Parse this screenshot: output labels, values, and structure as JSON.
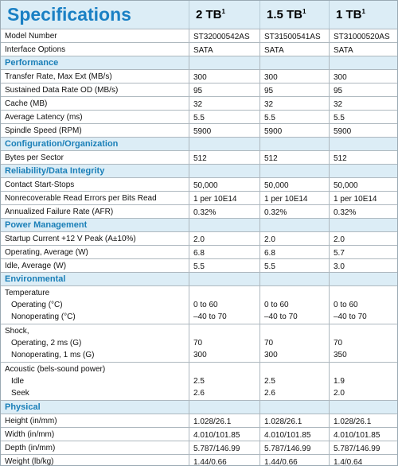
{
  "header": {
    "title": "Specifications",
    "columns": [
      {
        "label": "2 TB",
        "sup": "1"
      },
      {
        "label": "1.5 TB",
        "sup": "1"
      },
      {
        "label": "1 TB",
        "sup": "1"
      }
    ]
  },
  "top_rows": [
    {
      "label": "Model Number",
      "values": [
        "ST32000542AS",
        "ST31500541AS",
        "ST31000520AS"
      ]
    },
    {
      "label": "Interface Options",
      "values": [
        "SATA",
        "SATA",
        "SATA"
      ]
    }
  ],
  "sections": [
    {
      "title": "Performance",
      "rows": [
        {
          "label": "Transfer Rate, Max Ext (MB/s)",
          "values": [
            "300",
            "300",
            "300"
          ]
        },
        {
          "label": "Sustained Data Rate OD (MB/s)",
          "values": [
            "95",
            "95",
            "95"
          ]
        },
        {
          "label": "Cache (MB)",
          "values": [
            "32",
            "32",
            "32"
          ]
        },
        {
          "label": "Average Latency (ms)",
          "values": [
            "5.5",
            "5.5",
            "5.5"
          ]
        },
        {
          "label": "Spindle Speed (RPM)",
          "values": [
            "5900",
            "5900",
            "5900"
          ]
        }
      ]
    },
    {
      "title": "Configuration/Organization",
      "rows": [
        {
          "label": "Bytes per Sector",
          "values": [
            "512",
            "512",
            "512"
          ]
        }
      ]
    },
    {
      "title": "Reliability/Data Integrity",
      "rows": [
        {
          "label": "Contact Start-Stops",
          "values": [
            "50,000",
            "50,000",
            "50,000"
          ]
        },
        {
          "label": "Nonrecoverable Read Errors per Bits Read",
          "values": [
            "1 per 10E14",
            "1 per 10E14",
            "1 per 10E14"
          ]
        },
        {
          "label": "Annualized Failure Rate (AFR)",
          "values": [
            "0.32%",
            "0.32%",
            "0.32%"
          ]
        }
      ]
    },
    {
      "title": "Power Management",
      "rows": [
        {
          "label": "Startup Current +12 V Peak (A±10%)",
          "values": [
            "2.0",
            "2.0",
            "2.0"
          ]
        },
        {
          "label": "Operating, Average (W)",
          "values": [
            "6.8",
            "6.8",
            "5.7"
          ]
        },
        {
          "label": "Idle, Average (W)",
          "values": [
            "5.5",
            "5.5",
            "3.0"
          ]
        }
      ]
    },
    {
      "title": "Environmental",
      "rows": [
        {
          "label": "Temperature",
          "lines": [
            {
              "label": "Operating (°C)",
              "values": [
                "0 to 60",
                "0 to 60",
                "0 to 60"
              ]
            },
            {
              "label": "Nonoperating (°C)",
              "values": [
                "–40 to 70",
                "–40 to 70",
                "–40 to 70"
              ]
            }
          ]
        },
        {
          "label": "Shock,",
          "lines": [
            {
              "label": "Operating, 2 ms (G)",
              "values": [
                "70",
                "70",
                "70"
              ]
            },
            {
              "label": "Nonoperating, 1 ms (G)",
              "values": [
                "300",
                "300",
                "350"
              ]
            }
          ]
        },
        {
          "label": "Acoustic (bels-sound power)",
          "lines": [
            {
              "label": "Idle",
              "values": [
                "2.5",
                "2.5",
                "1.9"
              ]
            },
            {
              "label": "Seek",
              "values": [
                "2.6",
                "2.6",
                "2.0"
              ]
            }
          ]
        }
      ]
    },
    {
      "title": "Physical",
      "rows": [
        {
          "label": "Height (in/mm)",
          "values": [
            "1.028/26.1",
            "1.028/26.1",
            "1.028/26.1"
          ]
        },
        {
          "label": "Width (in/mm)",
          "values": [
            "4.010/101.85",
            "4.010/101.85",
            "4.010/101.85"
          ]
        },
        {
          "label": "Depth (in/mm)",
          "values": [
            "5.787/146.99",
            "5.787/146.99",
            "5.787/146.99"
          ]
        },
        {
          "label": "Weight (lb/kg)",
          "values": [
            "1.44/0.66",
            "1.44/0.66",
            "1.4/0.64"
          ]
        }
      ]
    }
  ]
}
